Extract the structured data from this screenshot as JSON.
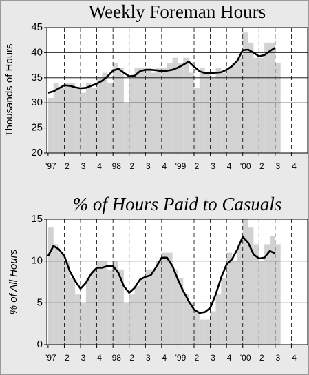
{
  "chart_data": [
    {
      "type": "bar-line",
      "title": "Weekly Foreman Hours",
      "y_label": "Thousands of Hours",
      "title_style": "normal",
      "x": [
        1997,
        1997.0833,
        1997.1667,
        1997.25,
        1997.3333,
        1997.4167,
        1997.5,
        1997.5833,
        1997.6667,
        1997.75,
        1997.8333,
        1997.9167,
        1998,
        1998.0833,
        1998.1667,
        1998.25,
        1998.3333,
        1998.4167,
        1998.5,
        1998.5833,
        1998.6667,
        1998.75,
        1998.8333,
        1998.9167,
        1999,
        1999.0833,
        1999.1667,
        1999.25,
        1999.3333,
        1999.4167,
        1999.5,
        1999.5833,
        1999.6667,
        1999.75,
        1999.8333,
        1999.9167,
        2000,
        2000.0833,
        2000.1667,
        2000.25,
        2000.3333,
        2000.4167,
        2000.5
      ],
      "series": [
        {
          "type": "bar",
          "color": "#d2d2d2",
          "values": [
            31,
            34,
            33,
            34,
            34,
            33,
            32,
            34,
            33,
            35,
            36,
            34,
            38,
            37,
            30,
            35,
            37,
            37,
            37,
            36,
            37,
            37,
            38,
            39,
            38,
            39,
            36,
            33,
            37,
            36,
            35,
            37,
            36,
            37,
            38,
            39,
            44,
            42,
            39,
            39,
            42,
            42,
            38
          ]
        },
        {
          "type": "line",
          "color": "#000000",
          "values": [
            32.0,
            32.3,
            32.9,
            33.5,
            33.4,
            33.1,
            32.9,
            33.0,
            33.4,
            33.8,
            34.4,
            35.3,
            36.4,
            36.8,
            36.0,
            35.3,
            35.4,
            36.3,
            36.6,
            36.6,
            36.5,
            36.3,
            36.4,
            36.6,
            37.0,
            37.6,
            38.2,
            37.2,
            36.3,
            35.9,
            35.9,
            36.0,
            36.1,
            36.6,
            37.3,
            38.4,
            40.5,
            40.6,
            40.0,
            39.3,
            39.5,
            40.3,
            41.0
          ]
        }
      ],
      "xlim": [
        1996.98,
        2001.0
      ],
      "xticks": [
        {
          "value": 1997,
          "label": "'97"
        },
        {
          "value": 1997.25,
          "label": "2"
        },
        {
          "value": 1997.5,
          "label": "3"
        },
        {
          "value": 1997.75,
          "label": "4"
        },
        {
          "value": 1998,
          "label": "'98"
        },
        {
          "value": 1998.25,
          "label": "2"
        },
        {
          "value": 1998.5,
          "label": "3"
        },
        {
          "value": 1998.75,
          "label": "4"
        },
        {
          "value": 1999,
          "label": "'99"
        },
        {
          "value": 1999.25,
          "label": "2"
        },
        {
          "value": 1999.5,
          "label": "3"
        },
        {
          "value": 1999.75,
          "label": "4"
        },
        {
          "value": 2000,
          "label": "'00"
        },
        {
          "value": 2000.25,
          "label": "2"
        },
        {
          "value": 2000.5,
          "label": "3"
        },
        {
          "value": 2000.75,
          "label": "4"
        }
      ],
      "ylim": [
        20,
        45
      ],
      "yticks": [
        20,
        25,
        30,
        35,
        40,
        45
      ],
      "grid": true
    },
    {
      "type": "bar-line",
      "title": "% of Hours Paid to Casuals",
      "y_label": "% of All Hours",
      "title_style": "italic",
      "x": [
        1997,
        1997.0833,
        1997.1667,
        1997.25,
        1997.3333,
        1997.4167,
        1997.5,
        1997.5833,
        1997.6667,
        1997.75,
        1997.8333,
        1997.9167,
        1998,
        1998.0833,
        1998.1667,
        1998.25,
        1998.3333,
        1998.4167,
        1998.5,
        1998.5833,
        1998.6667,
        1998.75,
        1998.8333,
        1998.9167,
        1999,
        1999.0833,
        1999.1667,
        1999.25,
        1999.3333,
        1999.4167,
        1999.5,
        1999.5833,
        1999.6667,
        1999.75,
        1999.8333,
        1999.9167,
        2000,
        2000.0833,
        2000.1667,
        2000.25,
        2000.3333,
        2000.4167,
        2000.5
      ],
      "series": [
        {
          "type": "bar",
          "color": "#d2d2d2",
          "values": [
            14,
            12,
            11,
            10,
            8,
            6,
            5,
            8,
            9,
            10,
            10,
            9,
            10,
            9,
            5,
            6,
            7,
            8,
            9,
            9,
            10,
            11,
            11,
            9,
            8,
            6,
            5,
            4,
            3,
            3,
            4,
            6,
            8,
            11,
            10,
            12,
            15,
            14,
            12,
            10,
            12,
            13,
            12
          ]
        },
        {
          "type": "line",
          "color": "#000000",
          "values": [
            10.6,
            11.8,
            11.4,
            10.6,
            8.8,
            7.6,
            6.7,
            7.4,
            8.5,
            9.2,
            9.2,
            9.4,
            9.4,
            8.6,
            7.0,
            6.2,
            6.8,
            7.8,
            8.1,
            8.3,
            9.3,
            10.4,
            10.4,
            9.4,
            7.8,
            6.4,
            5.2,
            4.2,
            3.8,
            3.9,
            4.4,
            6.0,
            8.0,
            9.6,
            10.2,
            11.4,
            12.9,
            12.2,
            10.8,
            10.3,
            10.4,
            11.2,
            10.9
          ]
        }
      ],
      "xlim": [
        1996.98,
        2001.0
      ],
      "xticks": [
        {
          "value": 1997,
          "label": "'97"
        },
        {
          "value": 1997.25,
          "label": "2"
        },
        {
          "value": 1997.5,
          "label": "3"
        },
        {
          "value": 1997.75,
          "label": "4"
        },
        {
          "value": 1998,
          "label": "'98"
        },
        {
          "value": 1998.25,
          "label": "2"
        },
        {
          "value": 1998.5,
          "label": "3"
        },
        {
          "value": 1998.75,
          "label": "4"
        },
        {
          "value": 1999,
          "label": "'99"
        },
        {
          "value": 1999.25,
          "label": "2"
        },
        {
          "value": 1999.5,
          "label": "3"
        },
        {
          "value": 1999.75,
          "label": "4"
        },
        {
          "value": 2000,
          "label": "'00"
        },
        {
          "value": 2000.25,
          "label": "2"
        },
        {
          "value": 2000.5,
          "label": "3"
        },
        {
          "value": 2000.75,
          "label": "4"
        }
      ],
      "ylim": [
        0,
        15
      ],
      "yticks": [
        0,
        5,
        10,
        15
      ],
      "grid": true
    }
  ]
}
